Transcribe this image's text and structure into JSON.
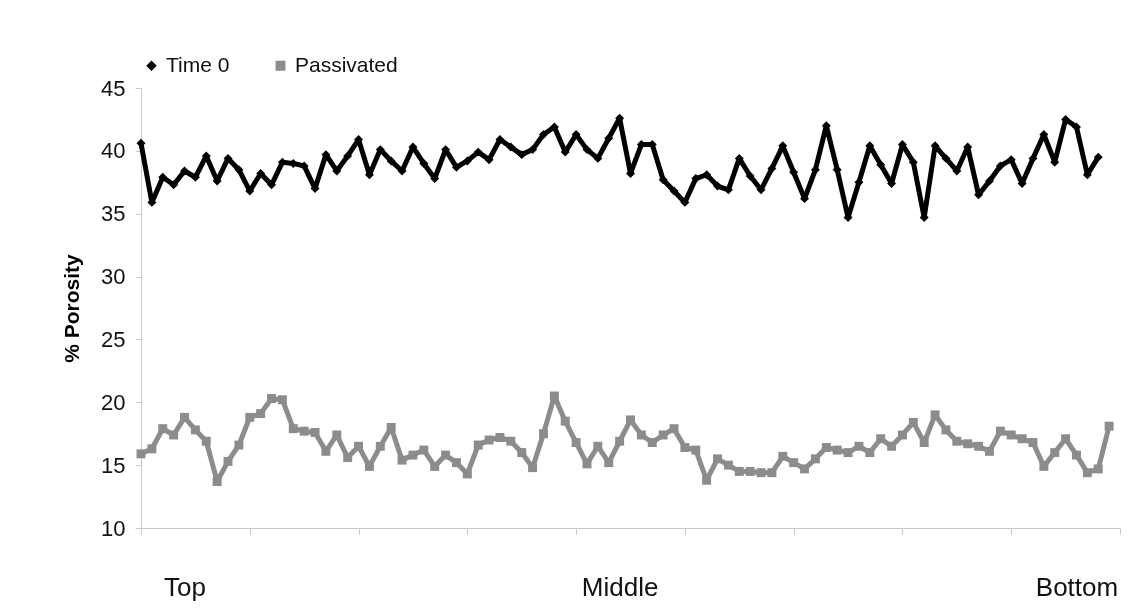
{
  "chart_data": {
    "type": "line",
    "ylabel": "% Porosity",
    "categories": [
      null,
      null,
      null,
      null,
      "Top",
      null,
      null,
      null,
      null,
      null,
      null,
      null,
      null,
      null,
      null,
      null,
      null,
      null,
      null,
      null,
      null,
      null,
      null,
      null,
      null,
      null,
      null,
      null,
      null,
      null,
      null,
      null,
      null,
      null,
      null,
      null,
      null,
      null,
      null,
      null,
      null,
      null,
      null,
      null,
      "Middle",
      null,
      null,
      null,
      null,
      null,
      null,
      null,
      null,
      null,
      null,
      null,
      null,
      null,
      null,
      null,
      null,
      null,
      null,
      null,
      null,
      null,
      null,
      null,
      null,
      null,
      null,
      null,
      null,
      null,
      null,
      null,
      null,
      null,
      null,
      null,
      null,
      null,
      null,
      null,
      null,
      null,
      "Bottom",
      null,
      null,
      null,
      null
    ],
    "ylim": [
      10,
      45
    ],
    "yticks": [
      10,
      15,
      20,
      25,
      30,
      35,
      40,
      45
    ],
    "grid": false,
    "legend": "top",
    "line_style": "solid",
    "series": [
      {
        "name": "Time 0",
        "color": "#000000",
        "marker": "diamond",
        "values": [
          40.6,
          35.9,
          37.9,
          37.3,
          38.4,
          37.9,
          39.6,
          37.6,
          39.4,
          38.5,
          36.8,
          38.2,
          37.3,
          39.1,
          39.0,
          38.8,
          37.0,
          39.7,
          38.4,
          39.6,
          40.9,
          38.1,
          40.1,
          39.2,
          38.4,
          40.3,
          39.0,
          37.8,
          40.1,
          38.7,
          39.2,
          39.9,
          39.3,
          40.9,
          40.3,
          39.7,
          40.1,
          41.3,
          41.9,
          39.9,
          41.3,
          40.1,
          39.4,
          41.0,
          42.6,
          38.2,
          40.5,
          40.5,
          37.7,
          36.8,
          35.9,
          37.8,
          38.1,
          37.2,
          36.9,
          39.4,
          38.0,
          36.9,
          38.6,
          40.4,
          38.3,
          36.2,
          38.5,
          42.0,
          38.5,
          34.7,
          37.5,
          40.4,
          38.9,
          37.4,
          40.5,
          39.1,
          34.7,
          40.4,
          39.4,
          38.4,
          40.3,
          36.5,
          37.6,
          38.8,
          39.3,
          37.4,
          39.4,
          41.3,
          39.1,
          42.5,
          41.9,
          38.1,
          39.5,
          null,
          null
        ]
      },
      {
        "name": "Passivated",
        "color": "#8c8c8c",
        "marker": "square",
        "values": [
          15.9,
          16.3,
          17.9,
          17.4,
          18.8,
          17.8,
          16.9,
          13.7,
          15.3,
          16.6,
          18.8,
          19.1,
          20.3,
          20.2,
          17.9,
          17.7,
          17.6,
          16.1,
          17.4,
          15.6,
          16.5,
          14.9,
          16.5,
          18.0,
          15.4,
          15.8,
          16.2,
          14.9,
          15.8,
          15.2,
          14.3,
          16.6,
          17.0,
          17.2,
          16.9,
          16.0,
          14.8,
          17.5,
          20.5,
          18.5,
          16.8,
          15.1,
          16.5,
          15.2,
          16.9,
          18.6,
          17.4,
          16.8,
          17.4,
          17.9,
          16.4,
          16.2,
          13.8,
          15.5,
          15.0,
          14.5,
          14.5,
          14.4,
          14.4,
          15.7,
          15.2,
          14.7,
          15.5,
          16.4,
          16.2,
          16.0,
          16.5,
          16.0,
          17.1,
          16.5,
          17.4,
          18.4,
          16.8,
          19.0,
          17.8,
          16.9,
          16.7,
          16.5,
          16.1,
          17.7,
          17.4,
          17.1,
          16.8,
          14.9,
          16.0,
          17.1,
          15.8,
          14.4,
          14.7,
          18.1,
          null
        ]
      }
    ]
  }
}
